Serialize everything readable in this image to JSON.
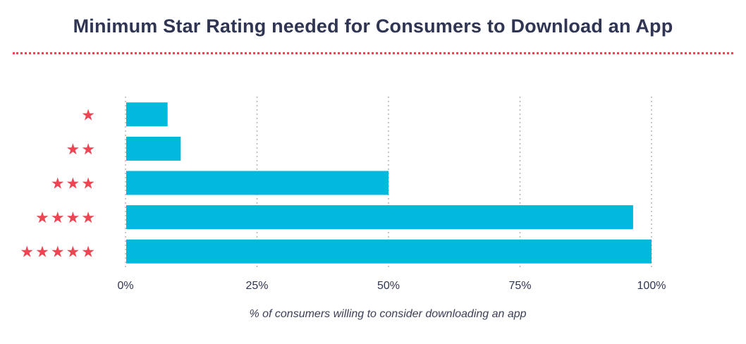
{
  "chart_data": {
    "type": "bar",
    "orientation": "horizontal",
    "title": "Minimum Star Rating needed for Consumers to Download an App",
    "xlabel": "% of consumers willing to consider downloading an app",
    "ylabel": "",
    "categories": [
      "★",
      "★★",
      "★★★",
      "★★★★",
      "★★★★★"
    ],
    "values": [
      8,
      10.5,
      50,
      96.5,
      100
    ],
    "xlim": [
      0,
      100
    ],
    "xticks": [
      "0%",
      "25%",
      "50%",
      "75%",
      "100%"
    ],
    "grid": "vertical dotted",
    "legend": "none",
    "colors": {
      "bar": "#00b9dc",
      "star": "#ef4452",
      "title": "#2f3552",
      "grid": "#b5b5b5"
    }
  }
}
